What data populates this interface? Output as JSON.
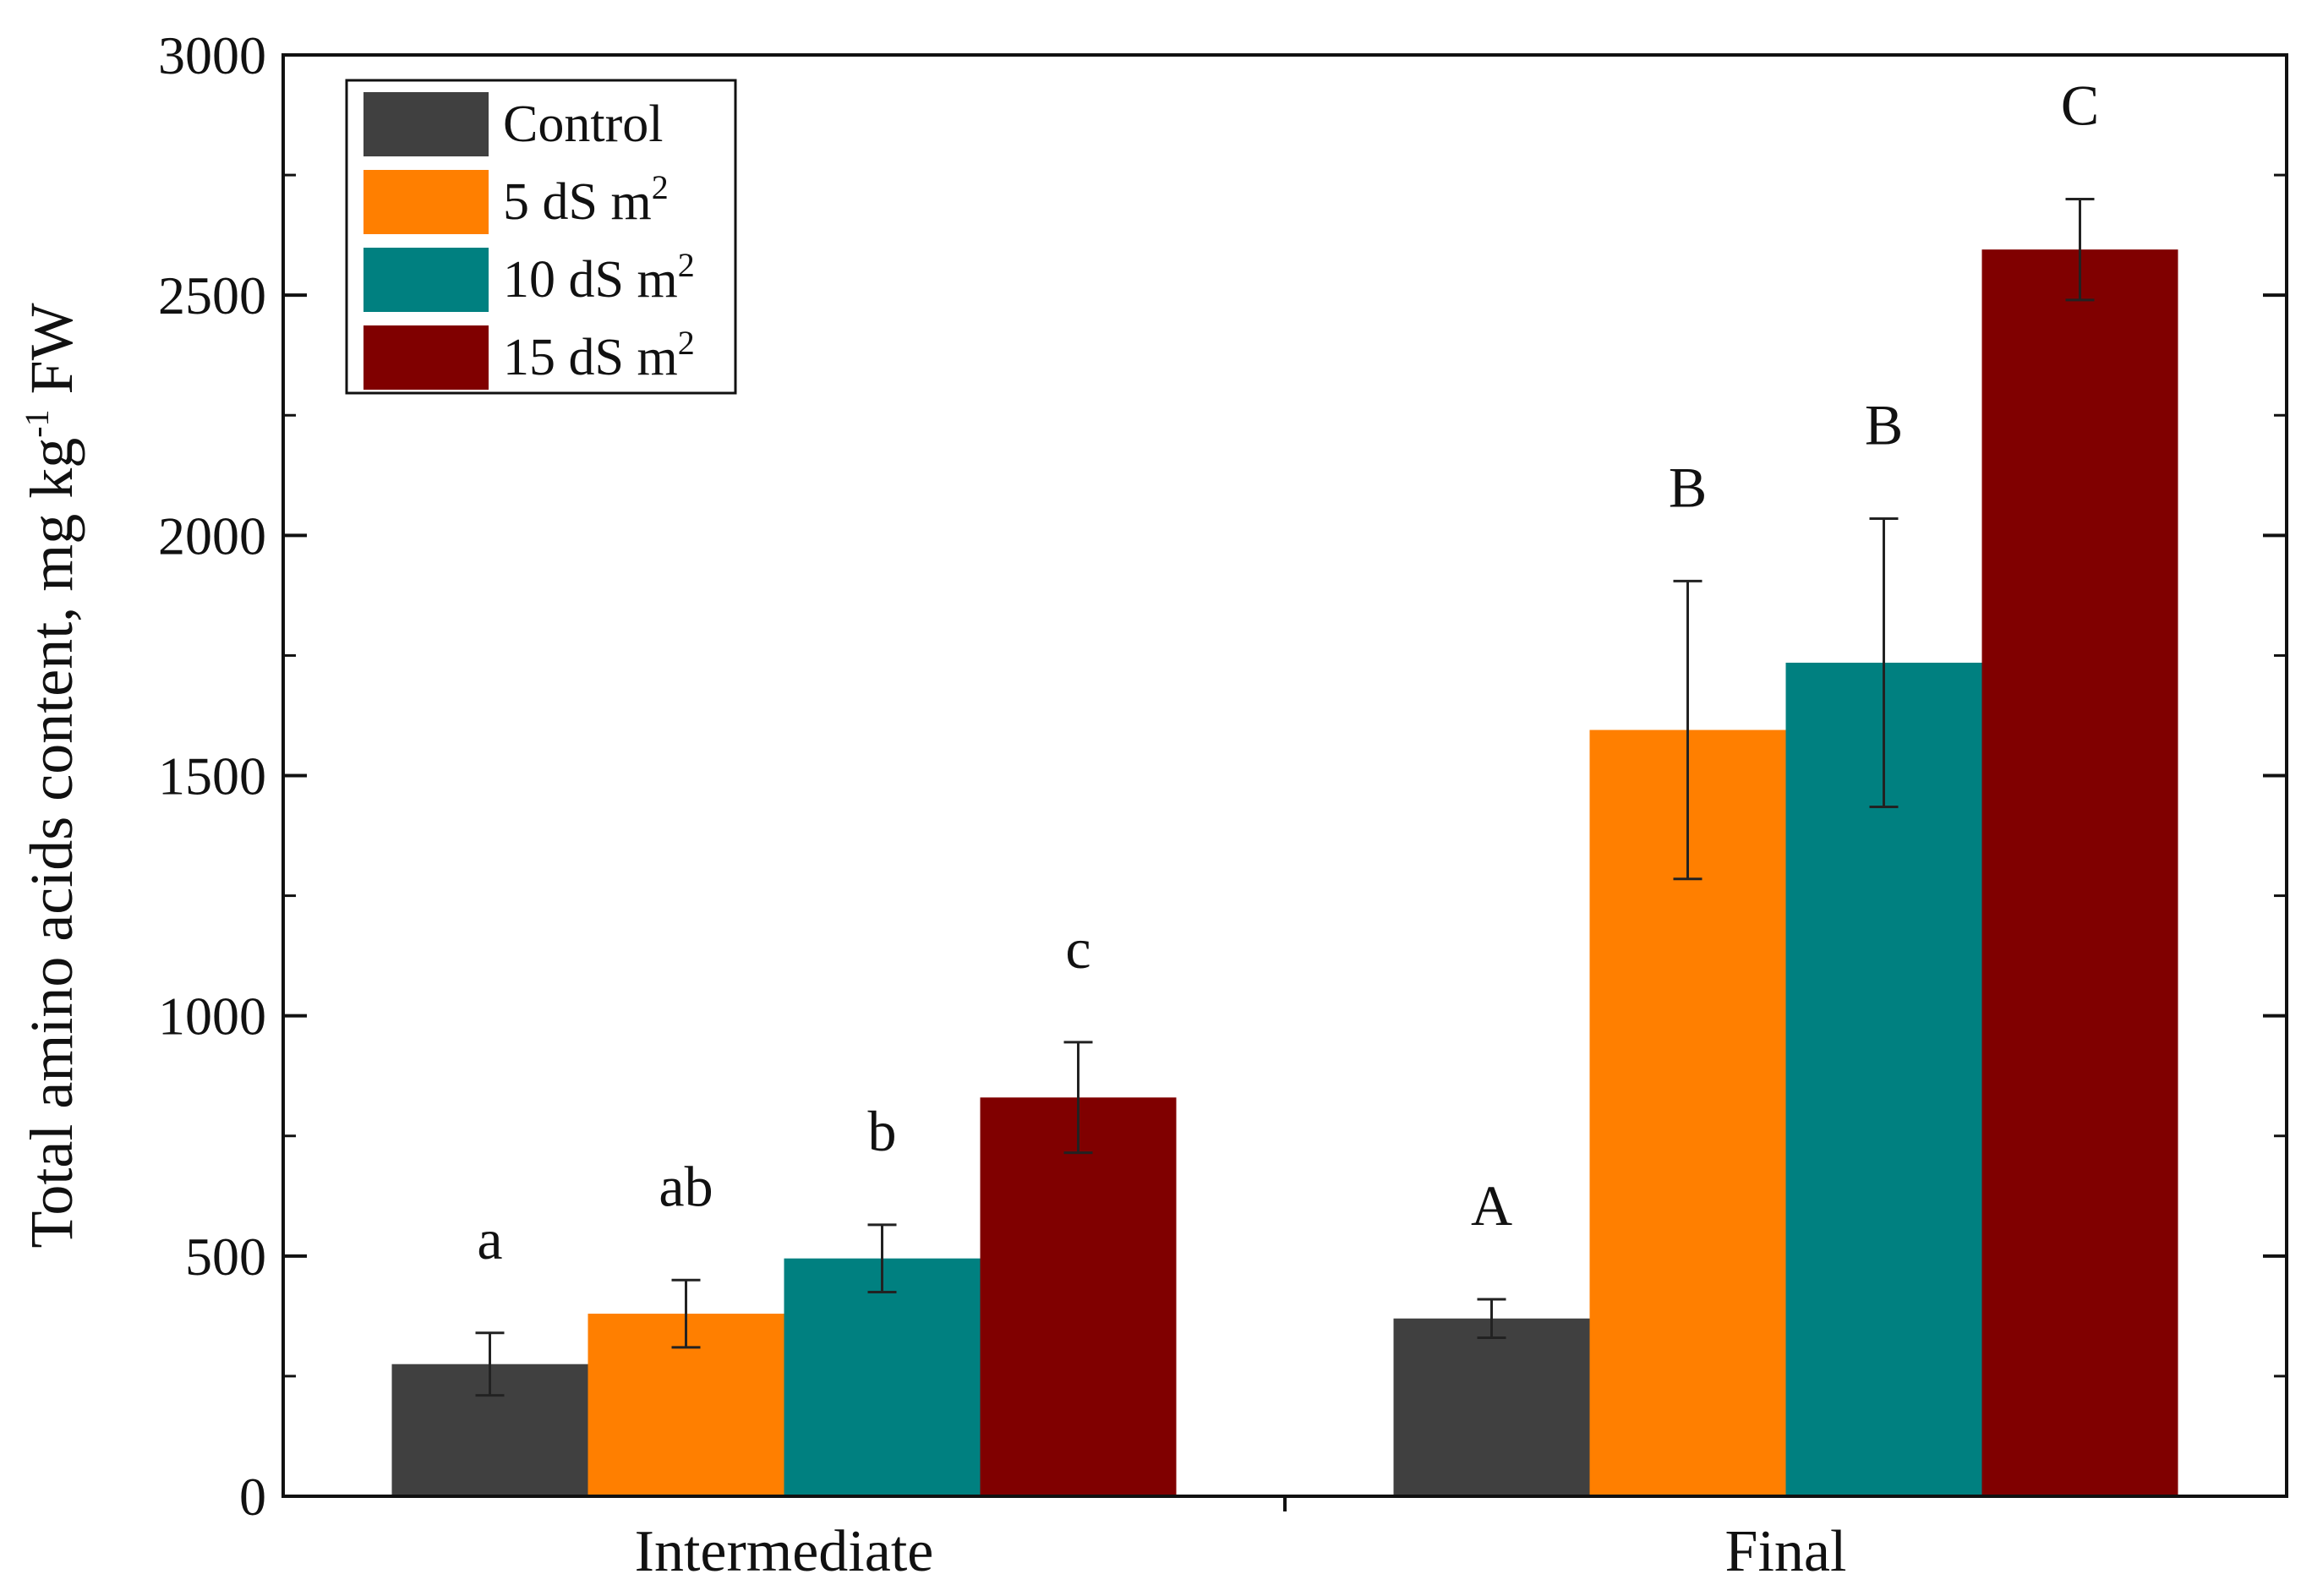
{
  "chart_data": {
    "type": "bar",
    "title": "",
    "xlabel": "",
    "ylabel": "Total amino acids content, mg kg",
    "ylabel_sup": "-1",
    "ylabel_suffix": " FW",
    "ylim": [
      0,
      3000
    ],
    "yticks": [
      "0",
      "500",
      "1000",
      "1500",
      "2000",
      "2500",
      "3000"
    ],
    "ytick_values": [
      0,
      500,
      1000,
      1500,
      2000,
      2500,
      3000
    ],
    "categories": [
      "Intermediate",
      "Final"
    ],
    "legend_position": "top-left",
    "series": [
      {
        "name": "Control",
        "name_main": "Control",
        "name_sup": "",
        "color": "#404040",
        "values": [
          275,
          370
        ],
        "errors": [
          65,
          40
        ],
        "letters": [
          "a",
          "A"
        ]
      },
      {
        "name": "5 dS m2",
        "name_main": "5 dS m",
        "name_sup": "2",
        "color": "#ff7f00",
        "values": [
          380,
          1595
        ],
        "errors": [
          70,
          310
        ],
        "letters": [
          "ab",
          "B"
        ]
      },
      {
        "name": "10 dS m2",
        "name_main": "10 dS m",
        "name_sup": "2",
        "color": "#008080",
        "values": [
          495,
          1735
        ],
        "errors": [
          70,
          300
        ],
        "letters": [
          "b",
          "B"
        ]
      },
      {
        "name": "15 dS m2",
        "name_main": "15 dS m",
        "name_sup": "2",
        "color": "#800000",
        "values": [
          830,
          2595
        ],
        "errors": [
          115,
          105
        ],
        "letters": [
          "c",
          "C"
        ]
      }
    ]
  }
}
